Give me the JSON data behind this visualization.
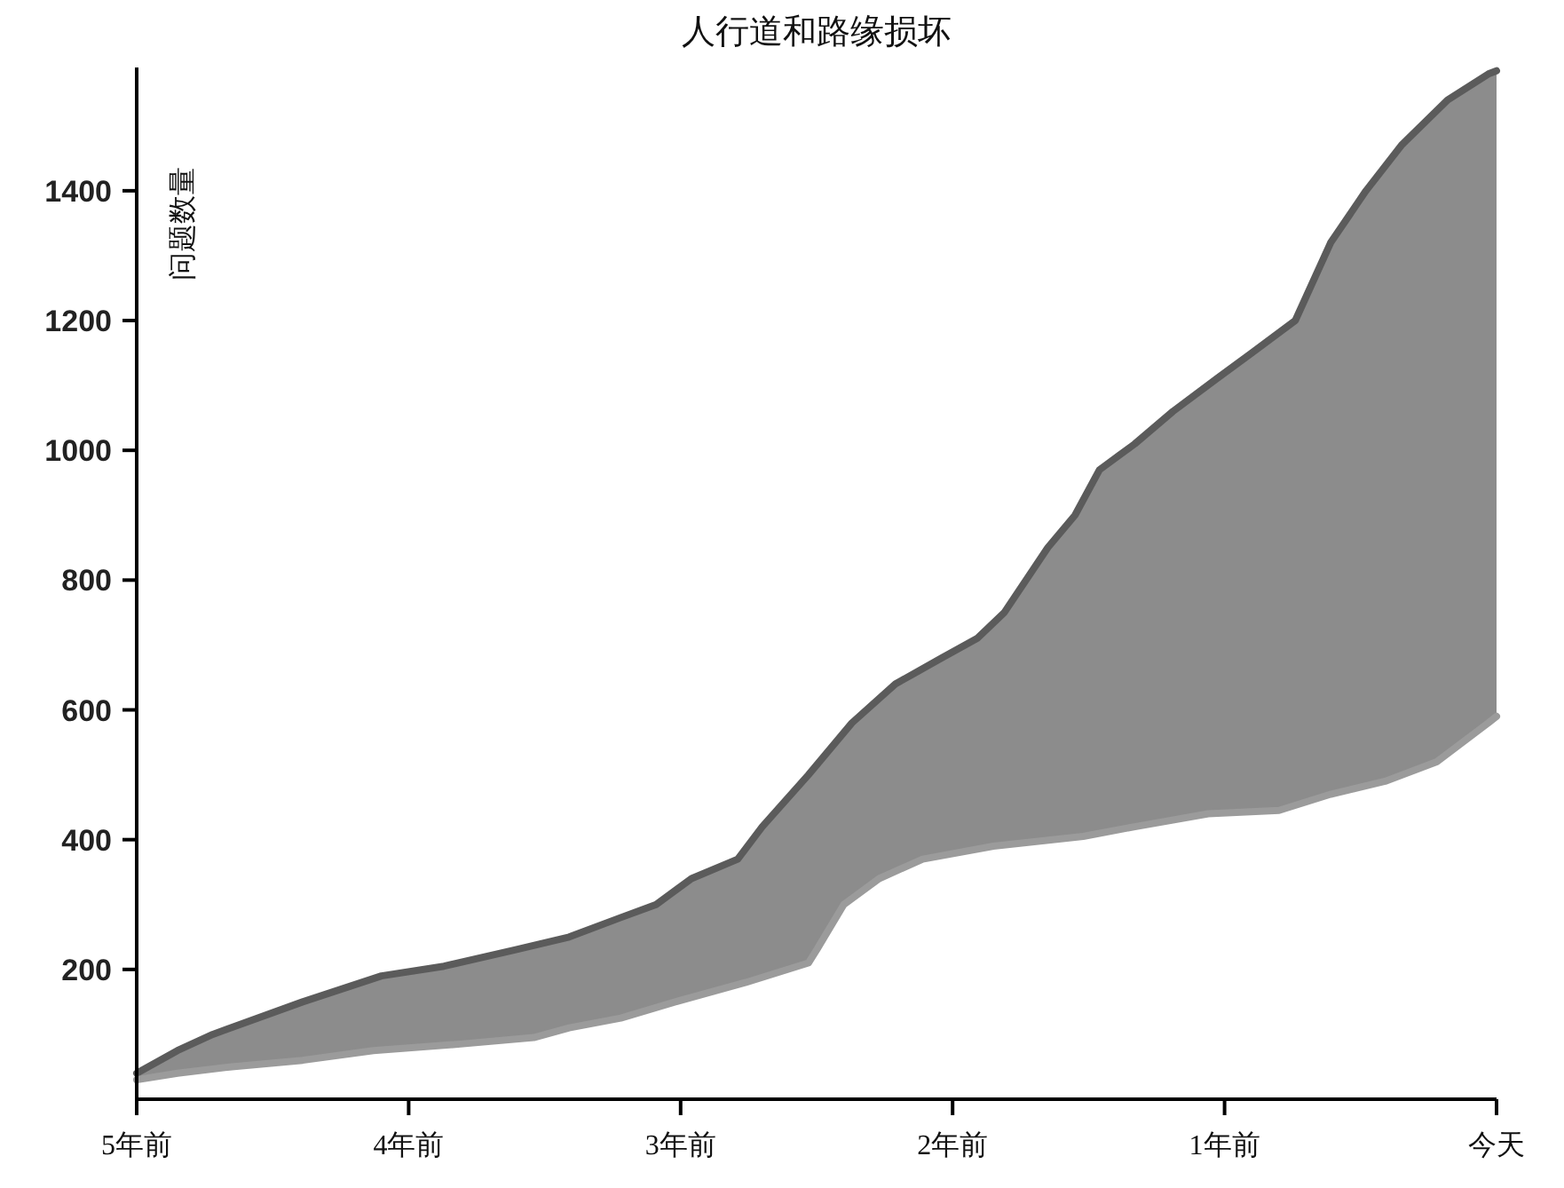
{
  "chart_data": {
    "type": "area",
    "title": "人行道和路缘损坏",
    "ylabel": "问题数量",
    "xlim": [
      -5,
      0
    ],
    "xticks": [
      {
        "value": -5,
        "label": "5年前"
      },
      {
        "value": -4,
        "label": "4年前"
      },
      {
        "value": -3,
        "label": "3年前"
      },
      {
        "value": -2,
        "label": "2年前"
      },
      {
        "value": -1,
        "label": "1年前"
      },
      {
        "value": 0,
        "label": "今天"
      }
    ],
    "ylim": [
      0,
      1590
    ],
    "yticks": [
      200,
      400,
      600,
      800,
      1000,
      1200,
      1400
    ],
    "series": [
      {
        "color": "#5b5b5b",
        "x": [
          -5,
          -4.85,
          -4.72,
          -4.39,
          -4.1,
          -3.87,
          -3.61,
          -3.41,
          -3.22,
          -3.09,
          -2.96,
          -2.79,
          -2.7,
          -2.53,
          -2.37,
          -2.21,
          -2.04,
          -1.91,
          -1.81,
          -1.65,
          -1.55,
          -1.46,
          -1.33,
          -1.19,
          -1.03,
          -0.9,
          -0.74,
          -0.61,
          -0.48,
          -0.35,
          -0.18,
          -0.03,
          0
        ],
        "values": [
          40,
          75,
          100,
          150,
          190,
          205,
          230,
          250,
          280,
          300,
          340,
          370,
          420,
          500,
          580,
          640,
          680,
          710,
          750,
          850,
          900,
          970,
          1010,
          1060,
          1110,
          1150,
          1200,
          1320,
          1400,
          1470,
          1540,
          1580,
          1585
        ]
      },
      {
        "color": "#9b9b9b",
        "x": [
          -5,
          -4.85,
          -4.65,
          -4.39,
          -4.13,
          -3.81,
          -3.54,
          -3.41,
          -3.22,
          -3.02,
          -2.76,
          -2.53,
          -2.5,
          -2.4,
          -2.27,
          -2.11,
          -1.85,
          -1.52,
          -1.33,
          -1.06,
          -0.8,
          -0.61,
          -0.41,
          -0.22,
          -0.03,
          0
        ],
        "values": [
          30,
          40,
          50,
          60,
          75,
          85,
          95,
          110,
          125,
          150,
          180,
          210,
          230,
          300,
          340,
          370,
          390,
          405,
          420,
          440,
          445,
          470,
          490,
          520,
          580,
          590
        ]
      }
    ]
  }
}
